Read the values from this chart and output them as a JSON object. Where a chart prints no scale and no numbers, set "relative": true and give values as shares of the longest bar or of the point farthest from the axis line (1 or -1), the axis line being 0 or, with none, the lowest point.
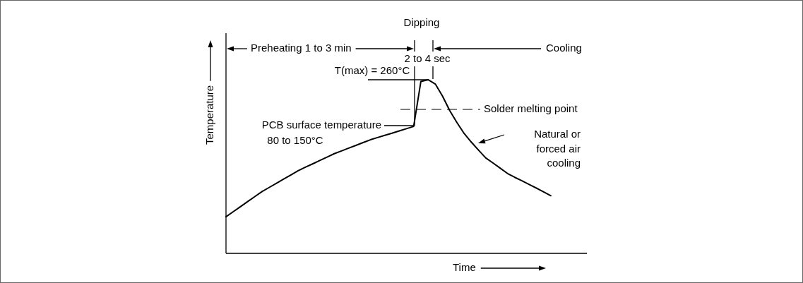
{
  "chart_data": {
    "type": "line",
    "relative": true,
    "xlabel": "Time",
    "ylabel": "Temperature",
    "marker": "none",
    "line_style": "solid",
    "categories": [
      null,
      null,
      null,
      null,
      null,
      null,
      null,
      null,
      null,
      null,
      null,
      null,
      null,
      null,
      null,
      null,
      null,
      null,
      null,
      null,
      null,
      null,
      null,
      null,
      null,
      null,
      null,
      null,
      null,
      null,
      null,
      null,
      null,
      null,
      null,
      null,
      null,
      null,
      null,
      null,
      null,
      null,
      null,
      null,
      null,
      null,
      null,
      null,
      null,
      null,
      null
    ],
    "series": [
      {
        "color": "#000000",
        "values": [
          0.211,
          0.24,
          0.269,
          0.298,
          0.327,
          0.356,
          0.38,
          0.404,
          0.428,
          0.452,
          0.476,
          0.496,
          0.515,
          0.535,
          0.554,
          0.574,
          0.59,
          0.606,
          0.622,
          0.638,
          0.654,
          0.667,
          0.68,
          0.692,
          0.705,
          0.718,
          0.731,
          0.99,
          1,
          0.975,
          0.905,
          0.822,
          0.753,
          0.69,
          0.64,
          0.594,
          0.549,
          0.52,
          0.49,
          0.46,
          0.438,
          0.418,
          0.397,
          0.376,
          0.354,
          0.332,
          null,
          null,
          null,
          null,
          null
        ]
      }
    ],
    "ref_lines": [
      {
        "axis": "y",
        "value": 0.829,
        "label": "Solder melting point",
        "line_style": "dashed",
        "color": "#000000"
      }
    ],
    "annotations": [
      "Dipping",
      "Preheating 1 to 3 min",
      "2 to 4 sec",
      "Cooling",
      "T(max) = 260°C",
      "PCB surface temperature\n80 to 150°C",
      "Natural or\nforced air\ncooling"
    ]
  }
}
